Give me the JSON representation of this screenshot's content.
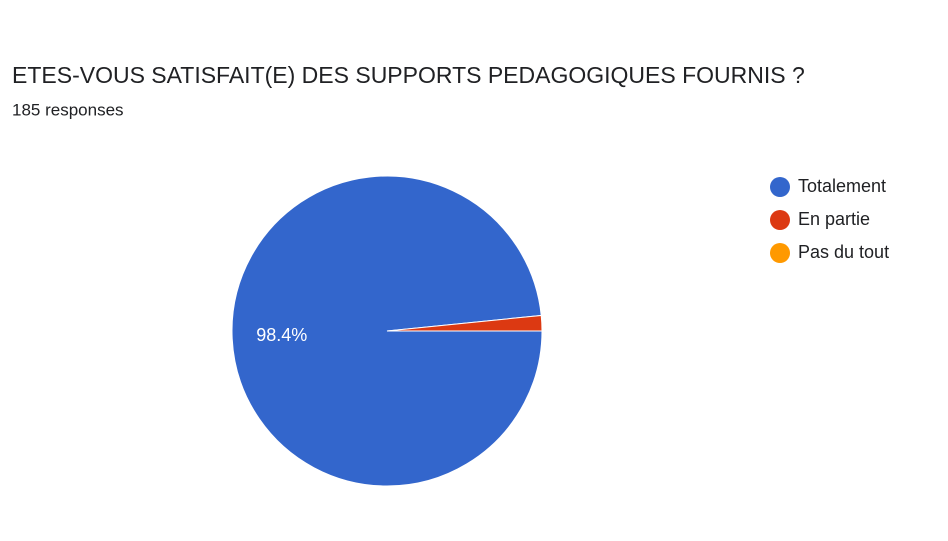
{
  "chart_data": {
    "type": "pie",
    "title": "ETES-VOUS SATISFAIT(E) DES SUPPORTS PEDAGOGIQUES FOURNIS ?",
    "subtitle": "185 responses",
    "categories": [
      "Totalement",
      "En partie",
      "Pas du tout"
    ],
    "values": [
      98.4,
      1.6,
      0
    ],
    "value_labels": [
      "98.4%",
      null,
      null
    ],
    "colors": [
      "#3366cc",
      "#dc3912",
      "#ff9900"
    ],
    "legend": "right"
  }
}
